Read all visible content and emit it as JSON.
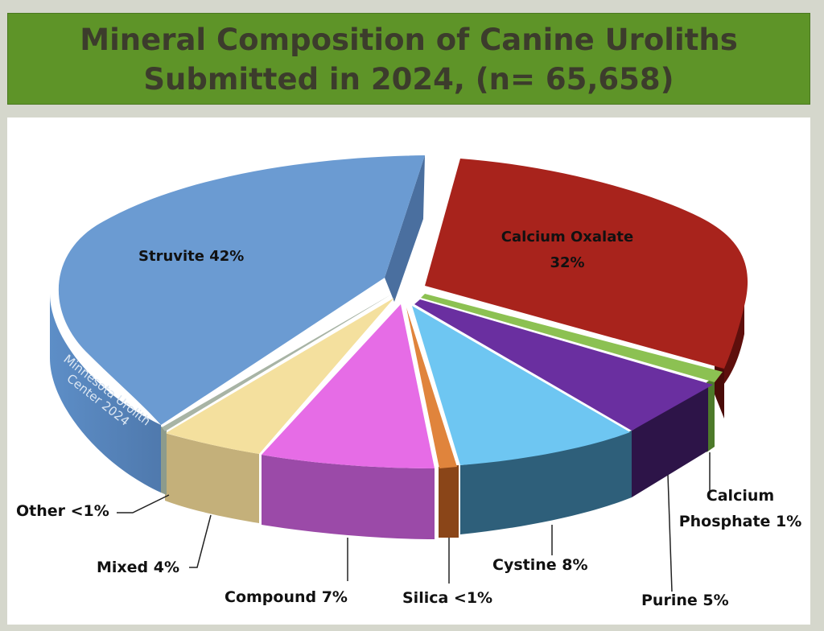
{
  "header": {
    "title_line1": "Mineral Composition of Canine Uroliths",
    "title_line2": "Submitted in 2024, (n= 65,658)"
  },
  "watermark": {
    "line1": "Minnesota Urolith",
    "line2": "Center 2024"
  },
  "chart_data": {
    "type": "pie",
    "title": "Mineral Composition of Canine Uroliths Submitted in 2024, (n= 65,658)",
    "total_n": 65658,
    "unit": "%",
    "style": "3d-exploded",
    "slices": [
      {
        "name": "Struvite",
        "value": 42,
        "display": "42%",
        "label": "Struvite 42%",
        "color": "#6b9bd2"
      },
      {
        "name": "Calcium Oxalate",
        "value": 32,
        "display": "32%",
        "label_line1": "Calcium Oxalate",
        "label_line2": "32%",
        "color": "#a8231c"
      },
      {
        "name": "Calcium Phosphate",
        "value": 1,
        "display": "1%",
        "label_line1": "Calcium",
        "label_line2": "Phosphate 1%",
        "color": "#8cc152"
      },
      {
        "name": "Purine",
        "value": 5,
        "display": "5%",
        "label": "Purine 5%",
        "color": "#6a2fa0"
      },
      {
        "name": "Cystine",
        "value": 8,
        "display": "8%",
        "label": "Cystine 8%",
        "color": "#6ec6f2"
      },
      {
        "name": "Silica",
        "value": 0.5,
        "display": "<1%",
        "label": "Silica <1%",
        "color": "#e0843c"
      },
      {
        "name": "Compound",
        "value": 7,
        "display": "7%",
        "label": "Compound 7%",
        "color": "#e66ce6"
      },
      {
        "name": "Mixed",
        "value": 4,
        "display": "4%",
        "label": "Mixed 4%",
        "color": "#f4e09e"
      },
      {
        "name": "Other",
        "value": 0.5,
        "display": "<1%",
        "label": "Other <1%",
        "color": "#c8b97a"
      }
    ]
  }
}
